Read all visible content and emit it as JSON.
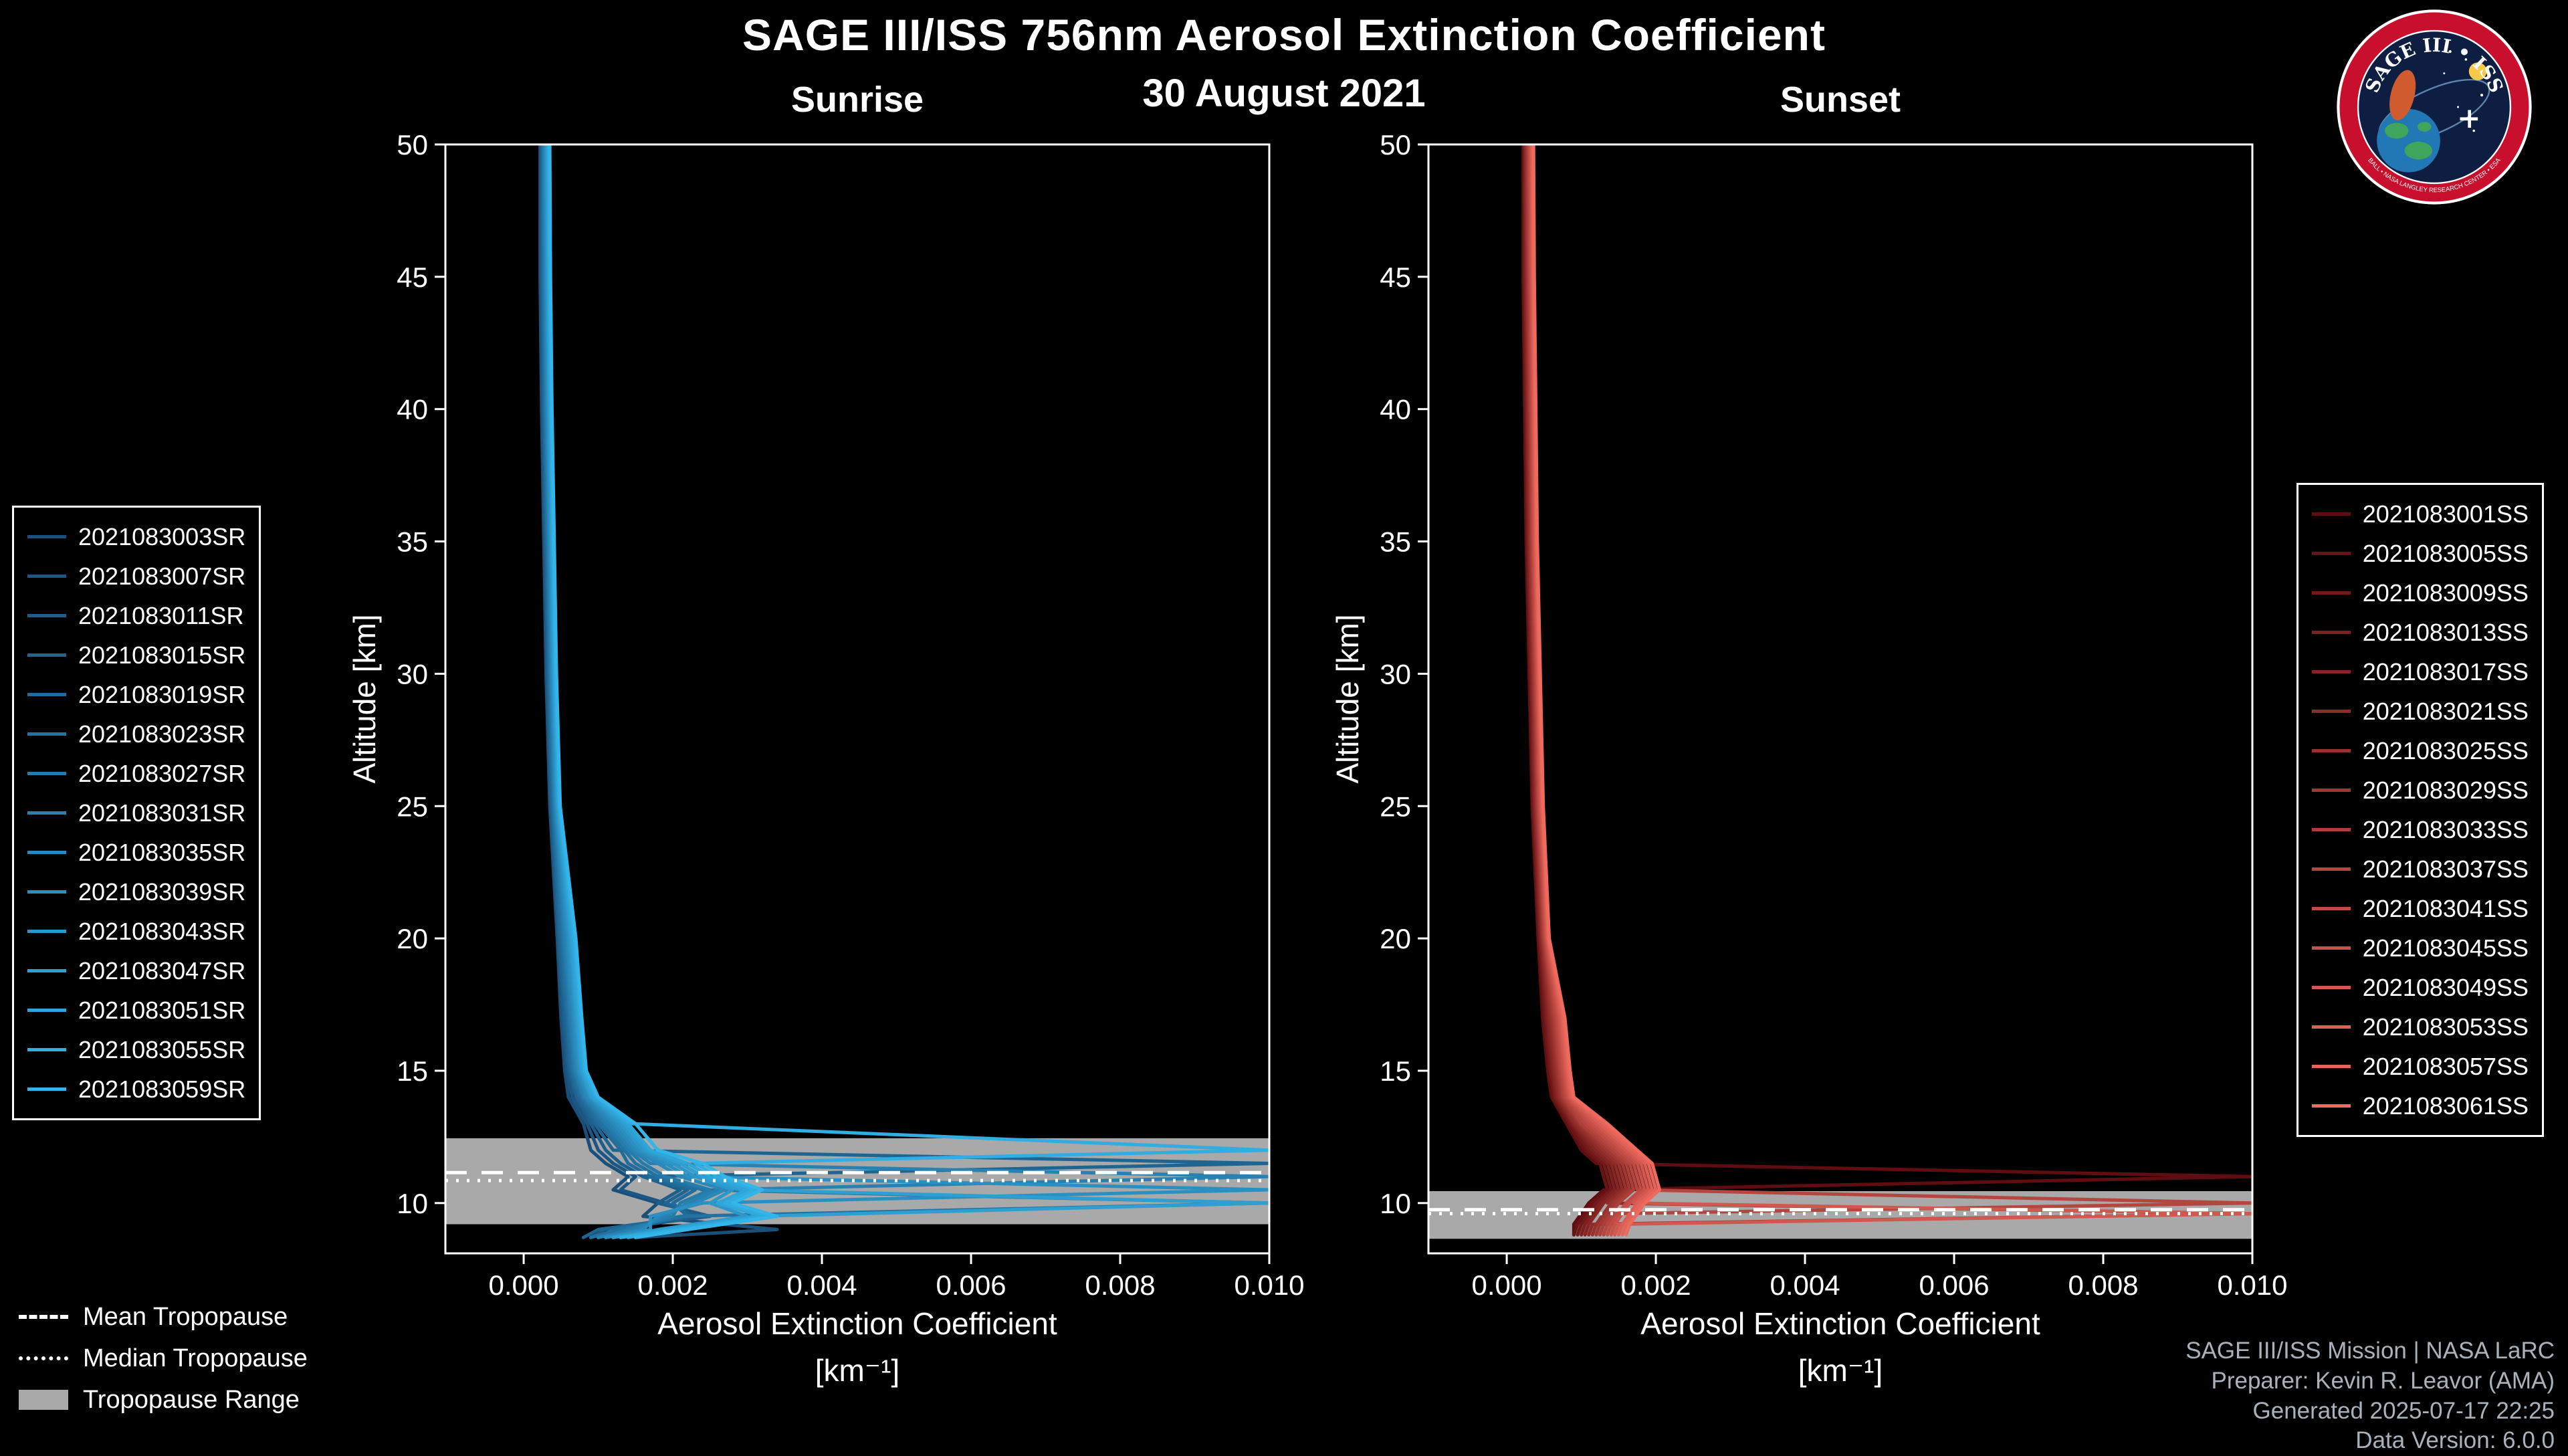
{
  "header": {
    "title": "SAGE III/ISS 756nm Aerosol Extinction Coefficient",
    "date": "30 August 2021"
  },
  "tropopause_legend": {
    "mean_label": "Mean Tropopause",
    "median_label": "Median Tropopause",
    "range_label": "Tropopause Range"
  },
  "credits": [
    "SAGE III/ISS Mission | NASA LaRC",
    "Preparer: Kevin R. Leavor (AMA)",
    "Generated 2025-07-17 22:25",
    "Data Version: 6.0.0"
  ],
  "logo": {
    "title": "SAGE III • ISS",
    "ring_text": "BALL • NASA LANGLEY RESEARCH CENTER • ESA"
  },
  "colors": {
    "background": "#000000",
    "frame": "#ffffff",
    "band": "#a9a9a9",
    "tropopause_line": "#ffffff",
    "credits_text": "#a9b2ba",
    "logo_ring": "#c8102e",
    "logo_inner": "#0e1e42"
  },
  "chart_data": [
    {
      "id": "sunrise",
      "type": "line",
      "title": "Sunrise",
      "xlabel": "Aerosol Extinction Coefficient",
      "xlabel_units": "[km⁻¹]",
      "ylabel": "Altitude [km]",
      "xlim": [
        -0.00105,
        0.01
      ],
      "ylim": [
        8.1,
        50
      ],
      "xtick_labels": [
        "0.000",
        "0.002",
        "0.004",
        "0.006",
        "0.008",
        "0.010"
      ],
      "yticks": [
        10,
        15,
        20,
        25,
        30,
        35,
        40,
        45,
        50
      ],
      "grid": false,
      "legend_position": "outside-left",
      "tropopause": {
        "mean": 11.15,
        "median": 10.85,
        "range": [
          9.2,
          12.45
        ]
      },
      "altitudes": [
        50,
        45,
        40,
        35,
        30,
        25,
        20,
        17,
        15,
        14,
        13,
        12,
        11.5,
        11,
        10.5,
        10,
        9.5,
        9,
        8.7
      ],
      "series": [
        {
          "name": "2021083003SR",
          "color": "#1a4f7a",
          "ext": [
            0.00022,
            0.00022,
            0.00024,
            0.00027,
            0.0003,
            0.00035,
            0.00045,
            0.0005,
            0.00055,
            0.0006,
            0.0008,
            0.0009,
            0.0011,
            0.0014,
            0.0012,
            0.0018,
            0.0016,
            0.0034,
            0.0015
          ]
        },
        {
          "name": "2021083007SR",
          "color": "#1c5682",
          "ext": [
            0.00023,
            0.00023,
            0.00025,
            0.00028,
            0.00031,
            0.00036,
            0.00046,
            0.00052,
            0.00058,
            0.00065,
            0.00085,
            0.001,
            0.0012,
            0.0015,
            0.0013,
            0.0019,
            0.0024,
            0.0012,
            0.001
          ]
        },
        {
          "name": "2021083011SR",
          "color": "#1e5e8a",
          "ext": [
            0.00024,
            0.00024,
            0.00026,
            0.00029,
            0.00032,
            0.00037,
            0.00047,
            0.00054,
            0.0006,
            0.0007,
            0.0009,
            0.0011,
            0.0013,
            0.0016,
            0.0021,
            0.0018,
            0.0025,
            0.0011,
            0.0009
          ]
        },
        {
          "name": "2021083015SR",
          "color": "#1f6592",
          "ext": [
            0.00025,
            0.00025,
            0.00027,
            0.0003,
            0.00033,
            0.00038,
            0.00048,
            0.00056,
            0.00062,
            0.00072,
            0.00095,
            0.0012,
            0.01,
            0.0016,
            0.0022,
            0.0019,
            0.0023,
            0.001,
            0.0008
          ]
        },
        {
          "name": "2021083019SR",
          "color": "#216c9a",
          "ext": [
            0.00025,
            0.00026,
            0.00028,
            0.00031,
            0.00034,
            0.00039,
            0.0005,
            0.00058,
            0.00064,
            0.00075,
            0.001,
            0.0013,
            0.0014,
            0.0017,
            0.0023,
            0.002,
            0.0022,
            0.0012,
            0.001
          ]
        },
        {
          "name": "2021083023SR",
          "color": "#2373a2",
          "ext": [
            0.00026,
            0.00027,
            0.00029,
            0.00032,
            0.00035,
            0.0004,
            0.00052,
            0.0006,
            0.00066,
            0.00078,
            0.00105,
            0.00135,
            0.0015,
            0.0018,
            0.0024,
            0.01,
            0.0021,
            0.0013,
            0.0009
          ]
        },
        {
          "name": "2021083027SR",
          "color": "#257baa",
          "ext": [
            0.00027,
            0.00028,
            0.0003,
            0.00033,
            0.00036,
            0.00041,
            0.00054,
            0.00062,
            0.00068,
            0.0008,
            0.0011,
            0.0014,
            0.0016,
            0.0019,
            0.0025,
            0.0021,
            0.002,
            0.0014,
            0.0011
          ]
        },
        {
          "name": "2021083031SR",
          "color": "#2782b2",
          "ext": [
            0.00028,
            0.00029,
            0.00031,
            0.00034,
            0.00037,
            0.00042,
            0.00056,
            0.00064,
            0.0007,
            0.00082,
            0.00115,
            0.00145,
            0.0017,
            0.01,
            0.0026,
            0.0022,
            0.0019,
            0.0015,
            0.001
          ]
        },
        {
          "name": "2021083035SR",
          "color": "#2889ba",
          "ext": [
            0.00029,
            0.0003,
            0.00032,
            0.00035,
            0.00038,
            0.00043,
            0.00058,
            0.00066,
            0.00072,
            0.00085,
            0.0012,
            0.0015,
            0.0018,
            0.0021,
            0.0027,
            0.0023,
            0.0018,
            0.0016,
            0.0012
          ]
        },
        {
          "name": "2021083039SR",
          "color": "#2a90c2",
          "ext": [
            0.0003,
            0.00031,
            0.00033,
            0.00036,
            0.00039,
            0.00044,
            0.0006,
            0.00068,
            0.00074,
            0.00088,
            0.00125,
            0.00155,
            0.0019,
            0.0022,
            0.01,
            0.0024,
            0.0017,
            0.0017,
            0.0011
          ]
        },
        {
          "name": "2021083043SR",
          "color": "#2c98ca",
          "ext": [
            0.00031,
            0.00032,
            0.00034,
            0.00037,
            0.0004,
            0.00045,
            0.00062,
            0.0007,
            0.00076,
            0.0009,
            0.0013,
            0.0016,
            0.002,
            0.0023,
            0.0028,
            0.0025,
            0.003,
            0.0018,
            0.0013
          ]
        },
        {
          "name": "2021083047SR",
          "color": "#2e9fd2",
          "ext": [
            0.00032,
            0.00033,
            0.00035,
            0.00038,
            0.00041,
            0.00046,
            0.00064,
            0.00072,
            0.00078,
            0.00092,
            0.00135,
            0.00165,
            0.0021,
            0.0024,
            0.0029,
            0.01,
            0.0031,
            0.0019,
            0.0012
          ]
        },
        {
          "name": "2021083051SR",
          "color": "#2fa6da",
          "ext": [
            0.00033,
            0.00034,
            0.00036,
            0.00039,
            0.00042,
            0.00047,
            0.00066,
            0.00074,
            0.0008,
            0.00095,
            0.0014,
            0.0017,
            0.0022,
            0.0025,
            0.003,
            0.0026,
            0.0032,
            0.002,
            0.0014
          ]
        },
        {
          "name": "2021083055SR",
          "color": "#31ade2",
          "ext": [
            0.00034,
            0.00035,
            0.00037,
            0.0004,
            0.00043,
            0.00048,
            0.00068,
            0.00076,
            0.00082,
            0.00098,
            0.00145,
            0.01,
            0.0023,
            0.0026,
            0.0031,
            0.0027,
            0.0033,
            0.0021,
            0.0013
          ]
        },
        {
          "name": "2021083059SR",
          "color": "#33b5ea",
          "ext": [
            0.00035,
            0.00036,
            0.00038,
            0.00041,
            0.00044,
            0.00049,
            0.0007,
            0.00078,
            0.00084,
            0.001,
            0.0015,
            0.0018,
            0.0024,
            0.0027,
            0.0032,
            0.0028,
            0.0034,
            0.0022,
            0.0015
          ]
        }
      ]
    },
    {
      "id": "sunset",
      "type": "line",
      "title": "Sunset",
      "xlabel": "Aerosol Extinction Coefficient",
      "xlabel_units": "[km⁻¹]",
      "ylabel": "Altitude [km]",
      "xlim": [
        -0.00105,
        0.01
      ],
      "ylim": [
        8.1,
        50
      ],
      "xtick_labels": [
        "0.000",
        "0.002",
        "0.004",
        "0.006",
        "0.008",
        "0.010"
      ],
      "yticks": [
        10,
        15,
        20,
        25,
        30,
        35,
        40,
        45,
        50
      ],
      "grid": false,
      "legend_position": "outside-right",
      "tropopause": {
        "mean": 9.75,
        "median": 9.6,
        "range": [
          8.65,
          10.45
        ]
      },
      "altitudes": [
        50,
        45,
        40,
        35,
        30,
        25,
        20,
        17,
        15,
        14,
        13,
        12,
        11.5,
        11,
        10.5,
        10,
        9.6,
        9.2,
        8.8
      ],
      "series": [
        {
          "name": "2021083001SS",
          "color": "#5f0d10",
          "ext": [
            0.00022,
            0.00022,
            0.00024,
            0.00026,
            0.0003,
            0.00034,
            0.00042,
            0.00048,
            0.00055,
            0.0006,
            0.0008,
            0.001,
            0.0012,
            0.01,
            0.0013,
            0.0011,
            0.001,
            0.0009,
            0.0009
          ]
        },
        {
          "name": "2021083005SS",
          "color": "#691315",
          "ext": [
            0.00023,
            0.00023,
            0.00025,
            0.00027,
            0.00031,
            0.00035,
            0.00043,
            0.0005,
            0.00057,
            0.00062,
            0.00082,
            0.00105,
            0.00125,
            0.0013,
            0.00135,
            0.00115,
            0.00105,
            0.00095,
            0.0009
          ]
        },
        {
          "name": "2021083009SS",
          "color": "#72191a",
          "ext": [
            0.00024,
            0.00024,
            0.00026,
            0.00028,
            0.00032,
            0.00036,
            0.00044,
            0.00052,
            0.00059,
            0.00064,
            0.00085,
            0.0011,
            0.0013,
            0.00135,
            0.0014,
            0.0012,
            0.0011,
            0.001,
            0.00095
          ]
        },
        {
          "name": "2021083013SS",
          "color": "#7c2020",
          "ext": [
            0.00025,
            0.00025,
            0.00027,
            0.00029,
            0.00033,
            0.00037,
            0.00045,
            0.00054,
            0.00061,
            0.00066,
            0.00088,
            0.00115,
            0.00135,
            0.0014,
            0.00145,
            0.00125,
            0.00115,
            0.00105,
            0.001
          ]
        },
        {
          "name": "2021083017SS",
          "color": "#852625",
          "ext": [
            0.00025,
            0.00026,
            0.00028,
            0.0003,
            0.00034,
            0.00038,
            0.00046,
            0.00056,
            0.00063,
            0.00068,
            0.0009,
            0.0012,
            0.0014,
            0.00145,
            0.0015,
            0.0013,
            0.0012,
            0.0011,
            0.00105
          ]
        },
        {
          "name": "2021083021SS",
          "color": "#8f2c2a",
          "ext": [
            0.00026,
            0.00027,
            0.00029,
            0.00031,
            0.00035,
            0.00039,
            0.00047,
            0.00058,
            0.00065,
            0.0007,
            0.00092,
            0.00125,
            0.00145,
            0.0015,
            0.00155,
            0.00135,
            0.01,
            0.00115,
            0.0011
          ]
        },
        {
          "name": "2021083025SS",
          "color": "#99322f",
          "ext": [
            0.00027,
            0.00028,
            0.0003,
            0.00032,
            0.00036,
            0.0004,
            0.00048,
            0.0006,
            0.00067,
            0.00072,
            0.00095,
            0.0013,
            0.0015,
            0.00155,
            0.0016,
            0.0014,
            0.0013,
            0.0012,
            0.00115
          ]
        },
        {
          "name": "2021083029SS",
          "color": "#a23834",
          "ext": [
            0.00028,
            0.00029,
            0.00031,
            0.00033,
            0.00037,
            0.00041,
            0.00049,
            0.00062,
            0.00069,
            0.00074,
            0.00098,
            0.00135,
            0.00155,
            0.0016,
            0.00165,
            0.00145,
            0.00135,
            0.00125,
            0.0012
          ]
        },
        {
          "name": "2021083033SS",
          "color": "#ac3f3a",
          "ext": [
            0.00029,
            0.0003,
            0.00032,
            0.00034,
            0.00038,
            0.00042,
            0.0005,
            0.00064,
            0.00071,
            0.00076,
            0.001,
            0.0014,
            0.0016,
            0.00165,
            0.0017,
            0.0015,
            0.0014,
            0.0013,
            0.00125
          ]
        },
        {
          "name": "2021083037SS",
          "color": "#b5453f",
          "ext": [
            0.0003,
            0.00031,
            0.00033,
            0.00035,
            0.00039,
            0.00043,
            0.00051,
            0.00066,
            0.00073,
            0.00078,
            0.00105,
            0.00145,
            0.00165,
            0.0017,
            0.00175,
            0.01,
            0.00145,
            0.00135,
            0.0013
          ]
        },
        {
          "name": "2021083041SS",
          "color": "#bf4b44",
          "ext": [
            0.00031,
            0.00032,
            0.00034,
            0.00036,
            0.0004,
            0.00044,
            0.00052,
            0.00068,
            0.00075,
            0.0008,
            0.0011,
            0.0015,
            0.0017,
            0.00175,
            0.0018,
            0.0016,
            0.0015,
            0.0014,
            0.00135
          ]
        },
        {
          "name": "2021083045SS",
          "color": "#c95149",
          "ext": [
            0.00032,
            0.00033,
            0.00035,
            0.00037,
            0.00041,
            0.00045,
            0.00053,
            0.0007,
            0.00077,
            0.00082,
            0.00115,
            0.00155,
            0.00175,
            0.0018,
            0.00185,
            0.00165,
            0.00155,
            0.00145,
            0.0014
          ]
        },
        {
          "name": "2021083049SS",
          "color": "#d2584f",
          "ext": [
            0.00033,
            0.00034,
            0.00036,
            0.00038,
            0.00042,
            0.00046,
            0.00054,
            0.00072,
            0.00079,
            0.00084,
            0.0012,
            0.0016,
            0.0018,
            0.00185,
            0.0019,
            0.0017,
            0.01,
            0.0015,
            0.00145
          ]
        },
        {
          "name": "2021083053SS",
          "color": "#dc5e54",
          "ext": [
            0.00034,
            0.00035,
            0.00037,
            0.00039,
            0.00043,
            0.00047,
            0.00055,
            0.00074,
            0.00081,
            0.00086,
            0.00125,
            0.00165,
            0.00185,
            0.0019,
            0.00195,
            0.00175,
            0.00165,
            0.00155,
            0.0015
          ]
        },
        {
          "name": "2021083057SS",
          "color": "#e56459",
          "ext": [
            0.00035,
            0.00036,
            0.00038,
            0.0004,
            0.00044,
            0.00048,
            0.00056,
            0.00076,
            0.00083,
            0.00088,
            0.0013,
            0.0017,
            0.0019,
            0.00195,
            0.002,
            0.0018,
            0.0017,
            0.0016,
            0.00155
          ]
        },
        {
          "name": "2021083061SS",
          "color": "#ef6a5e",
          "ext": [
            0.00036,
            0.00037,
            0.00039,
            0.00041,
            0.00045,
            0.00049,
            0.00057,
            0.00078,
            0.00085,
            0.0009,
            0.00135,
            0.00175,
            0.00195,
            0.002,
            0.00205,
            0.00185,
            0.00175,
            0.00165,
            0.0016
          ]
        }
      ]
    }
  ]
}
